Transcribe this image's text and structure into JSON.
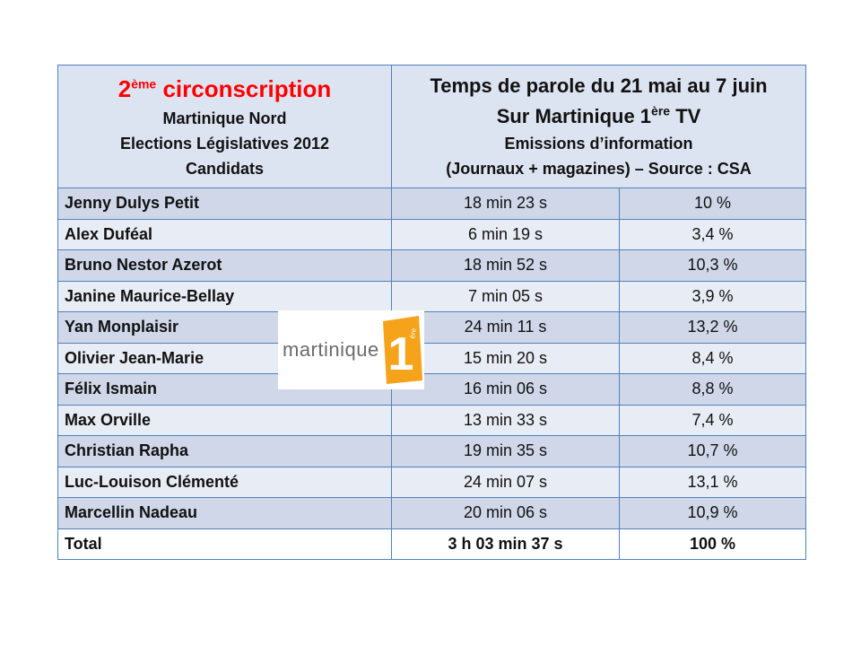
{
  "header": {
    "left": {
      "num": "2",
      "sup": "ème",
      "title_rest": " circonscription",
      "line2": "Martinique Nord",
      "line3": "Elections Législatives 2012",
      "line4": "Candidats"
    },
    "right": {
      "line1": "Temps de parole du 21 mai au 7 juin",
      "line2_pre": "Sur Martinique 1",
      "line2_sup": "ère",
      "line2_post": " TV",
      "line3": "Emissions d’information",
      "line4": "(Journaux + magazines) – Source : CSA"
    }
  },
  "rows": [
    {
      "name": "Jenny Dulys Petit",
      "time": "18 min 23 s",
      "pct": "10 %"
    },
    {
      "name": "Alex Duféal",
      "time": "6 min 19 s",
      "pct": "3,4 %"
    },
    {
      "name": "Bruno Nestor Azerot",
      "time": "18 min 52 s",
      "pct": "10,3 %"
    },
    {
      "name": "Janine Maurice-Bellay",
      "time": "7 min 05 s",
      "pct": "3,9 %"
    },
    {
      "name": "Yan Monplaisir",
      "time": "24 min 11 s",
      "pct": "13,2 %"
    },
    {
      "name": "Olivier Jean-Marie",
      "time": "15 min 20 s",
      "pct": "8,4 %"
    },
    {
      "name": "Félix Ismain",
      "time": "16 min 06 s",
      "pct": "8,8 %"
    },
    {
      "name": "Max Orville",
      "time": "13 min 33 s",
      "pct": "7,4 %"
    },
    {
      "name": "Christian Rapha",
      "time": "19 min 35 s",
      "pct": "10,7 %"
    },
    {
      "name": "Luc-Louison Clémenté",
      "time": "24 min 07 s",
      "pct": "13,1 %"
    },
    {
      "name": "Marcellin Nadeau",
      "time": "20 min 06 s",
      "pct": "10,9 %"
    }
  ],
  "total": {
    "name": "Total",
    "time": "3 h 03 min 37 s",
    "pct": "100 %"
  },
  "logo": {
    "word": "martinique",
    "badge_num": "1",
    "badge_sup": "ère",
    "badge_color": "#f5a31a"
  }
}
